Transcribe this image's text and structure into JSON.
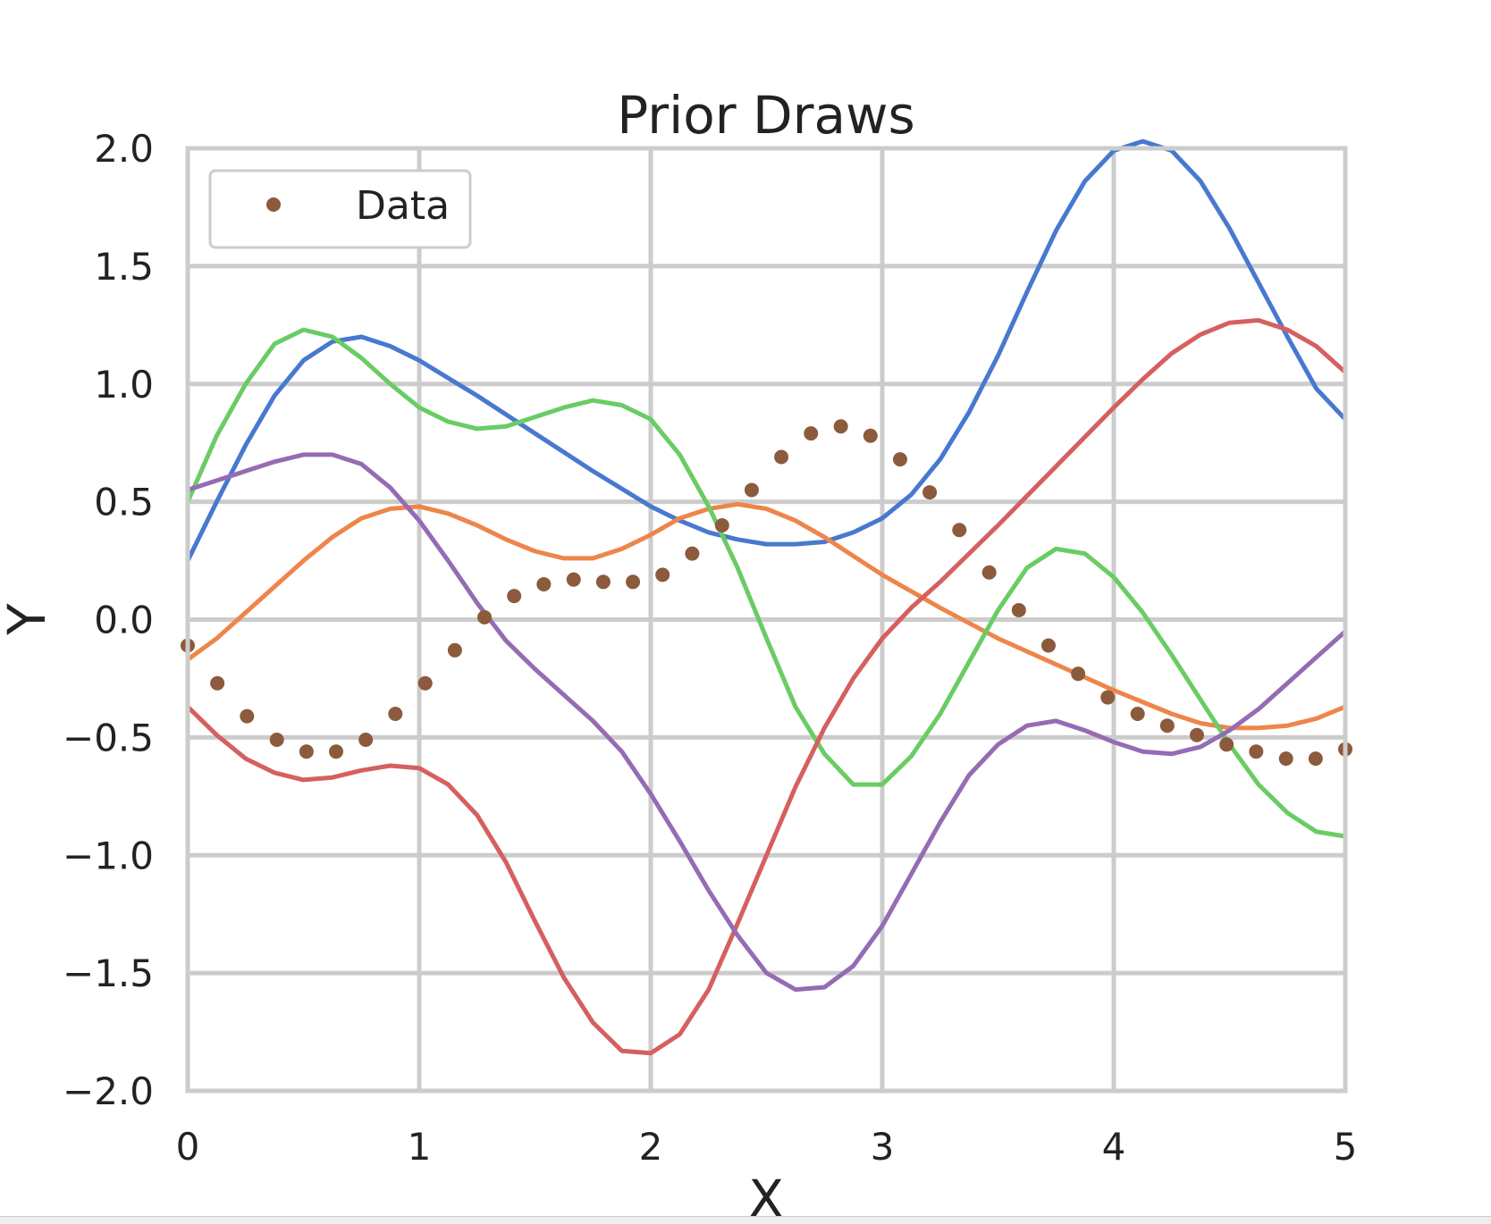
{
  "chart_data": {
    "type": "line",
    "title": "Prior Draws",
    "xlabel": "X",
    "ylabel": "Y",
    "xlim": [
      0,
      5
    ],
    "ylim": [
      -2.0,
      2.0
    ],
    "xticks": [
      0,
      1,
      2,
      3,
      4,
      5
    ],
    "xtick_labels": [
      "0",
      "1",
      "2",
      "3",
      "4",
      "5"
    ],
    "yticks": [
      -2.0,
      -1.5,
      -1.0,
      -0.5,
      0.0,
      0.5,
      1.0,
      1.5,
      2.0
    ],
    "ytick_labels": [
      "−2.0",
      "−1.5",
      "−1.0",
      "−0.5",
      "0.0",
      "0.5",
      "1.0",
      "1.5",
      "2.0"
    ],
    "grid": true,
    "legend": {
      "placement": "top-left",
      "entries": [
        "Data"
      ]
    },
    "scatter": {
      "name": "Data",
      "color": "#8c5a3c",
      "x": [
        0,
        0.128,
        0.256,
        0.385,
        0.513,
        0.641,
        0.769,
        0.897,
        1.026,
        1.154,
        1.282,
        1.41,
        1.538,
        1.667,
        1.795,
        1.923,
        2.051,
        2.179,
        2.308,
        2.436,
        2.564,
        2.692,
        2.821,
        2.949,
        3.077,
        3.205,
        3.333,
        3.462,
        3.59,
        3.718,
        3.846,
        3.974,
        4.103,
        4.231,
        4.359,
        4.487,
        4.615,
        4.744,
        4.872,
        5.0
      ],
      "y": [
        -0.11,
        -0.27,
        -0.41,
        -0.51,
        -0.56,
        -0.56,
        -0.51,
        -0.4,
        -0.27,
        -0.13,
        0.01,
        0.1,
        0.15,
        0.17,
        0.16,
        0.16,
        0.19,
        0.28,
        0.4,
        0.55,
        0.69,
        0.79,
        0.82,
        0.78,
        0.68,
        0.54,
        0.38,
        0.2,
        0.04,
        -0.11,
        -0.23,
        -0.33,
        -0.4,
        -0.45,
        -0.49,
        -0.53,
        -0.56,
        -0.59,
        -0.59,
        -0.55
      ]
    },
    "series": [
      {
        "color": "#4878d0",
        "x": [
          0,
          0.125,
          0.25,
          0.375,
          0.5,
          0.625,
          0.75,
          0.875,
          1.0,
          1.25,
          1.5,
          1.75,
          2.0,
          2.125,
          2.25,
          2.375,
          2.5,
          2.625,
          2.75,
          2.875,
          3.0,
          3.125,
          3.25,
          3.375,
          3.5,
          3.625,
          3.75,
          3.875,
          4.0,
          4.125,
          4.25,
          4.375,
          4.5,
          4.625,
          4.75,
          4.875,
          5.0
        ],
        "y": [
          0.25,
          0.5,
          0.74,
          0.95,
          1.1,
          1.18,
          1.2,
          1.16,
          1.1,
          0.95,
          0.79,
          0.63,
          0.48,
          0.42,
          0.37,
          0.34,
          0.32,
          0.32,
          0.33,
          0.37,
          0.43,
          0.53,
          0.68,
          0.88,
          1.12,
          1.39,
          1.65,
          1.86,
          1.99,
          2.03,
          1.99,
          1.86,
          1.66,
          1.43,
          1.2,
          0.98,
          0.85
        ]
      },
      {
        "color": "#ee854a",
        "x": [
          0,
          0.125,
          0.25,
          0.375,
          0.5,
          0.625,
          0.75,
          0.875,
          1.0,
          1.125,
          1.25,
          1.375,
          1.5,
          1.625,
          1.75,
          1.875,
          2.0,
          2.125,
          2.25,
          2.375,
          2.5,
          2.625,
          2.75,
          2.875,
          3.0,
          3.25,
          3.5,
          3.75,
          4.0,
          4.25,
          4.375,
          4.5,
          4.625,
          4.75,
          4.875,
          5.0
        ],
        "y": [
          -0.17,
          -0.08,
          0.03,
          0.14,
          0.25,
          0.35,
          0.43,
          0.47,
          0.48,
          0.45,
          0.4,
          0.34,
          0.29,
          0.26,
          0.26,
          0.3,
          0.36,
          0.43,
          0.47,
          0.49,
          0.47,
          0.42,
          0.35,
          0.27,
          0.19,
          0.05,
          -0.08,
          -0.19,
          -0.3,
          -0.4,
          -0.44,
          -0.46,
          -0.46,
          -0.45,
          -0.42,
          -0.37
        ]
      },
      {
        "color": "#6acc64",
        "x": [
          0,
          0.125,
          0.25,
          0.375,
          0.5,
          0.625,
          0.75,
          0.875,
          1.0,
          1.125,
          1.25,
          1.375,
          1.5,
          1.625,
          1.75,
          1.875,
          2.0,
          2.125,
          2.25,
          2.375,
          2.5,
          2.625,
          2.75,
          2.875,
          3.0,
          3.125,
          3.25,
          3.375,
          3.5,
          3.625,
          3.75,
          3.875,
          4.0,
          4.125,
          4.25,
          4.375,
          4.5,
          4.625,
          4.75,
          4.875,
          5.0
        ],
        "y": [
          0.5,
          0.78,
          1.0,
          1.17,
          1.23,
          1.2,
          1.11,
          1.0,
          0.9,
          0.84,
          0.81,
          0.82,
          0.86,
          0.9,
          0.93,
          0.91,
          0.85,
          0.7,
          0.48,
          0.22,
          -0.08,
          -0.37,
          -0.57,
          -0.7,
          -0.7,
          -0.58,
          -0.4,
          -0.18,
          0.04,
          0.22,
          0.3,
          0.28,
          0.18,
          0.03,
          -0.15,
          -0.34,
          -0.53,
          -0.7,
          -0.82,
          -0.9,
          -0.92
        ]
      },
      {
        "color": "#d65f5f",
        "x": [
          0,
          0.125,
          0.25,
          0.375,
          0.5,
          0.625,
          0.75,
          0.875,
          1.0,
          1.125,
          1.25,
          1.375,
          1.5,
          1.625,
          1.75,
          1.875,
          2.0,
          2.125,
          2.25,
          2.375,
          2.5,
          2.625,
          2.75,
          2.875,
          3.0,
          3.125,
          3.25,
          3.5,
          3.75,
          4.0,
          4.125,
          4.25,
          4.375,
          4.5,
          4.625,
          4.75,
          4.875,
          5.0
        ],
        "y": [
          -0.37,
          -0.49,
          -0.59,
          -0.65,
          -0.68,
          -0.67,
          -0.64,
          -0.62,
          -0.63,
          -0.7,
          -0.83,
          -1.03,
          -1.28,
          -1.52,
          -1.71,
          -1.83,
          -1.84,
          -1.76,
          -1.57,
          -1.29,
          -1.0,
          -0.71,
          -0.46,
          -0.25,
          -0.08,
          0.05,
          0.16,
          0.4,
          0.65,
          0.9,
          1.02,
          1.13,
          1.21,
          1.26,
          1.27,
          1.23,
          1.16,
          1.05
        ]
      },
      {
        "color": "#956cb4",
        "x": [
          0,
          0.125,
          0.25,
          0.375,
          0.5,
          0.625,
          0.75,
          0.875,
          1.0,
          1.125,
          1.25,
          1.375,
          1.5,
          1.625,
          1.75,
          1.875,
          2.0,
          2.125,
          2.25,
          2.375,
          2.5,
          2.625,
          2.75,
          2.875,
          3.0,
          3.125,
          3.25,
          3.375,
          3.5,
          3.625,
          3.75,
          3.875,
          4.0,
          4.125,
          4.25,
          4.375,
          4.5,
          4.625,
          4.75,
          4.875,
          5.0
        ],
        "y": [
          0.55,
          0.59,
          0.63,
          0.67,
          0.7,
          0.7,
          0.66,
          0.56,
          0.42,
          0.25,
          0.07,
          -0.09,
          -0.21,
          -0.32,
          -0.43,
          -0.56,
          -0.74,
          -0.94,
          -1.15,
          -1.34,
          -1.5,
          -1.57,
          -1.56,
          -1.47,
          -1.3,
          -1.08,
          -0.86,
          -0.66,
          -0.53,
          -0.45,
          -0.43,
          -0.47,
          -0.52,
          -0.56,
          -0.57,
          -0.54,
          -0.47,
          -0.38,
          -0.27,
          -0.16,
          -0.05
        ]
      }
    ]
  }
}
